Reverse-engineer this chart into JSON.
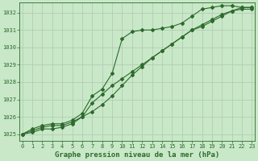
{
  "title": "Graphe pression niveau de la mer (hPa)",
  "xlabel_hours": [
    0,
    1,
    2,
    3,
    4,
    5,
    6,
    7,
    8,
    9,
    10,
    11,
    12,
    13,
    14,
    15,
    16,
    17,
    18,
    19,
    20,
    21,
    22,
    23
  ],
  "line1": [
    1025.0,
    1025.2,
    1025.4,
    1025.5,
    1025.5,
    1025.7,
    1026.0,
    1026.3,
    1026.7,
    1027.2,
    1027.8,
    1028.4,
    1028.9,
    1029.4,
    1029.8,
    1030.2,
    1030.6,
    1031.0,
    1031.3,
    1031.6,
    1031.9,
    1032.1,
    1032.2,
    1032.2
  ],
  "line2": [
    1025.0,
    1025.1,
    1025.3,
    1025.3,
    1025.4,
    1025.6,
    1026.0,
    1026.8,
    1027.3,
    1027.8,
    1028.2,
    1028.6,
    1029.0,
    1029.4,
    1029.8,
    1030.2,
    1030.6,
    1031.0,
    1031.2,
    1031.5,
    1031.8,
    1032.1,
    1032.3,
    1032.3
  ],
  "line3": [
    1025.0,
    1025.3,
    1025.5,
    1025.6,
    1025.6,
    1025.8,
    1026.2,
    1027.2,
    1027.6,
    1028.5,
    1030.5,
    1030.9,
    1031.0,
    1031.0,
    1031.1,
    1031.2,
    1031.4,
    1031.8,
    1032.2,
    1032.3,
    1032.4,
    1032.4,
    1032.3,
    1032.3
  ],
  "line_color": "#2d6a2d",
  "bg_color": "#c8e8c8",
  "grid_color": "#b0c8b0",
  "ylim": [
    1024.6,
    1032.6
  ],
  "yticks": [
    1025,
    1026,
    1027,
    1028,
    1029,
    1030,
    1031,
    1032
  ],
  "xlim": [
    -0.3,
    23.3
  ],
  "title_fontsize": 6.5,
  "tick_fontsize": 5.0,
  "marker_size": 2.0,
  "line_width": 0.8
}
